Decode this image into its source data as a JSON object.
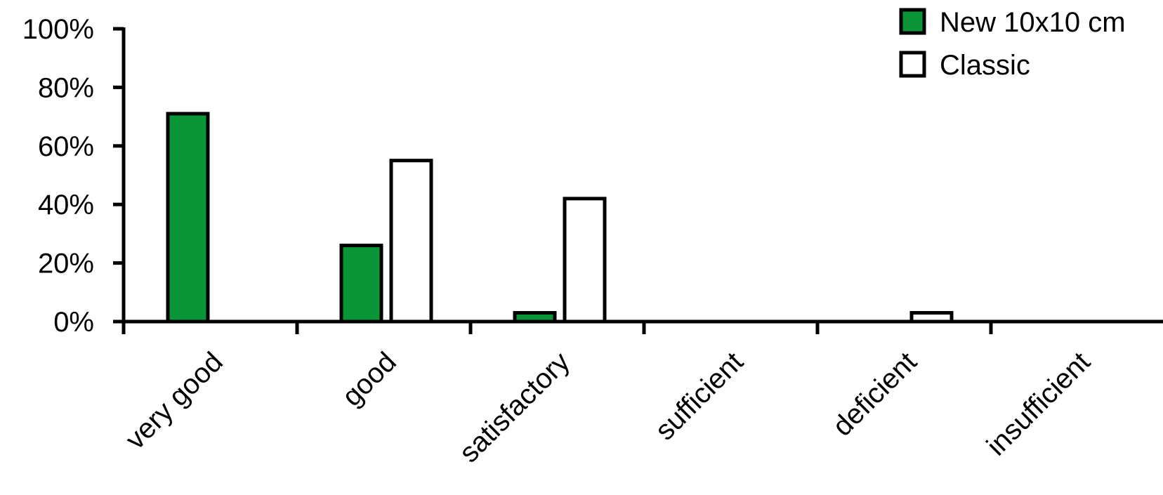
{
  "chart_data": {
    "type": "bar",
    "categories": [
      "very good",
      "good",
      "satisfactory",
      "sufficient",
      "deficient",
      "insufficient"
    ],
    "series": [
      {
        "name": "New 10x10 cm",
        "values": [
          71,
          26,
          3,
          0,
          0,
          0
        ],
        "color": "#0a9637"
      },
      {
        "name": "Classic",
        "values": [
          0,
          55,
          42,
          0,
          3,
          0
        ],
        "color": "#ffffff"
      }
    ],
    "yticks": [
      "0%",
      "20%",
      "40%",
      "60%",
      "80%",
      "100%"
    ],
    "ylim": [
      0,
      100
    ],
    "ylabel": "",
    "xlabel": "",
    "title": "",
    "grid": false,
    "legend_position": "top-right"
  }
}
